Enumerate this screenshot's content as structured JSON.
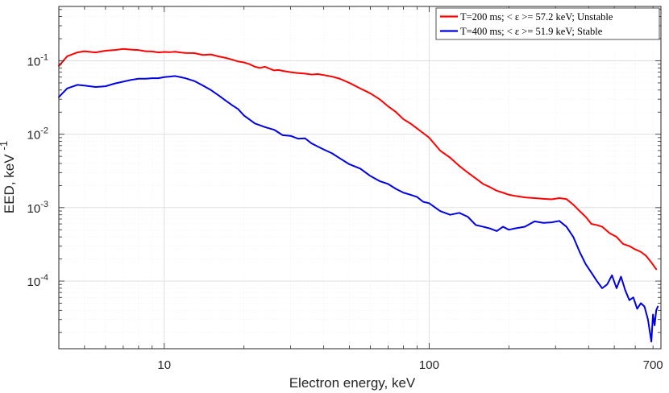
{
  "chart_data": {
    "type": "line",
    "title": "",
    "xlabel": "Electron energy, keV",
    "ylabel": "EED, keV",
    "ylabel_sup": "-1",
    "xscale": "log",
    "yscale": "log",
    "xlim": [
      4,
      750
    ],
    "ylim": [
      1.2e-05,
      0.55
    ],
    "grid": true,
    "minor_grid": true,
    "legend_position": "top-right",
    "x_ticks": [
      {
        "value": 10,
        "label": "10"
      },
      {
        "value": 100,
        "label": "100"
      },
      {
        "value": 700,
        "label": "700"
      }
    ],
    "y_ticks": [
      {
        "value": 0.1,
        "base": "10",
        "exp": "-1"
      },
      {
        "value": 0.01,
        "base": "10",
        "exp": "-2"
      },
      {
        "value": 0.001,
        "base": "10",
        "exp": "-3"
      },
      {
        "value": 0.0001,
        "base": "10",
        "exp": "-4"
      }
    ],
    "series": [
      {
        "name": "T=200 ms; < ε >= 57.2 keV; Unstable",
        "color": "#ff0000",
        "x": [
          4.0,
          4.3,
          4.7,
          5.0,
          5.5,
          6.0,
          6.5,
          7.0,
          7.5,
          8.0,
          8.5,
          9.0,
          9.5,
          10.0,
          10.5,
          11.0,
          11.5,
          12.0,
          13.0,
          14.0,
          15.0,
          16.0,
          17.0,
          18.0,
          19.0,
          20.0,
          21.0,
          22.0,
          23.0,
          24.0,
          25.0,
          26.0,
          27.0,
          28.0,
          30.0,
          32.0,
          34.0,
          36.0,
          38.0,
          40.0,
          43.0,
          46.0,
          50.0,
          55.0,
          60.0,
          65.0,
          70.0,
          75.0,
          80.0,
          85.0,
          90.0,
          100.0,
          110.0,
          120.0,
          130.0,
          140.0,
          150.0,
          160.0,
          170.0,
          180.0,
          190.0,
          200.0,
          210.0,
          230.0,
          250.0,
          270.0,
          290.0,
          310.0,
          330.0,
          350.0,
          370.0,
          390.0,
          410.0,
          430.0,
          450.0,
          480.0,
          510.0,
          540.0,
          570.0,
          600.0,
          630.0,
          660.0,
          690.0,
          720.0
        ],
        "values": [
          0.085,
          0.115,
          0.13,
          0.135,
          0.13,
          0.137,
          0.14,
          0.145,
          0.142,
          0.14,
          0.135,
          0.134,
          0.13,
          0.132,
          0.131,
          0.133,
          0.13,
          0.128,
          0.127,
          0.12,
          0.122,
          0.115,
          0.11,
          0.104,
          0.098,
          0.095,
          0.09,
          0.083,
          0.08,
          0.083,
          0.078,
          0.074,
          0.075,
          0.073,
          0.07,
          0.068,
          0.067,
          0.065,
          0.066,
          0.064,
          0.061,
          0.057,
          0.05,
          0.042,
          0.036,
          0.03,
          0.024,
          0.02,
          0.016,
          0.014,
          0.012,
          0.009,
          0.006,
          0.0048,
          0.0037,
          0.003,
          0.0025,
          0.0021,
          0.0019,
          0.0017,
          0.0016,
          0.0015,
          0.00145,
          0.00138,
          0.00135,
          0.00132,
          0.0013,
          0.00135,
          0.00131,
          0.0011,
          0.0009,
          0.00075,
          0.0006,
          0.00058,
          0.00055,
          0.00045,
          0.0004,
          0.00032,
          0.0003,
          0.00027,
          0.00025,
          0.00022,
          0.00018,
          0.000145
        ]
      },
      {
        "name": "T=400 ms; < ε >= 51.9 keV; Stable",
        "color": "#0000e6",
        "x": [
          4.0,
          4.3,
          4.7,
          5.0,
          5.5,
          6.0,
          6.5,
          7.0,
          7.5,
          8.0,
          8.5,
          9.0,
          9.5,
          10.0,
          10.5,
          11.0,
          11.5,
          12.0,
          13.0,
          14.0,
          15.0,
          16.0,
          17.0,
          18.0,
          19.0,
          20.0,
          22.0,
          24.0,
          26.0,
          28.0,
          30.0,
          32.0,
          34.0,
          36.0,
          38.0,
          40.0,
          43.0,
          46.0,
          50.0,
          55.0,
          60.0,
          65.0,
          70.0,
          75.0,
          80.0,
          85.0,
          90.0,
          95.0,
          100.0,
          110.0,
          120.0,
          130.0,
          140.0,
          150.0,
          160.0,
          170.0,
          180.0,
          190.0,
          200.0,
          210.0,
          230.0,
          250.0,
          270.0,
          290.0,
          310.0,
          330.0,
          350.0,
          370.0,
          390.0,
          410.0,
          430.0,
          450.0,
          470.0,
          490.0,
          510.0,
          530.0,
          550.0,
          570.0,
          590.0,
          610.0,
          630.0,
          650.0,
          670.0,
          690.0,
          700.0,
          710.0,
          720.0,
          730.0
        ],
        "values": [
          0.032,
          0.042,
          0.047,
          0.046,
          0.044,
          0.045,
          0.049,
          0.052,
          0.055,
          0.057,
          0.057,
          0.058,
          0.058,
          0.06,
          0.061,
          0.062,
          0.06,
          0.058,
          0.053,
          0.046,
          0.04,
          0.034,
          0.029,
          0.025,
          0.022,
          0.018,
          0.014,
          0.0125,
          0.0115,
          0.0097,
          0.0095,
          0.0087,
          0.0088,
          0.0075,
          0.0068,
          0.0062,
          0.0055,
          0.0047,
          0.0039,
          0.0034,
          0.0027,
          0.0023,
          0.0021,
          0.0018,
          0.0016,
          0.0015,
          0.0014,
          0.0012,
          0.00115,
          0.0009,
          0.0008,
          0.00085,
          0.00075,
          0.00058,
          0.00055,
          0.00052,
          0.00048,
          0.00055,
          0.0005,
          0.00052,
          0.00055,
          0.00065,
          0.00062,
          0.00063,
          0.00066,
          0.00055,
          0.0004,
          0.00025,
          0.00017,
          0.00013,
          0.0001,
          8e-05,
          9e-05,
          0.00012,
          8e-05,
          0.000115,
          7.5e-05,
          5.5e-05,
          6e-05,
          4.2e-05,
          5e-05,
          4.5e-05,
          3e-05,
          1.5e-05,
          3.5e-05,
          2.5e-05,
          4e-05,
          4.5e-05
        ]
      }
    ]
  }
}
